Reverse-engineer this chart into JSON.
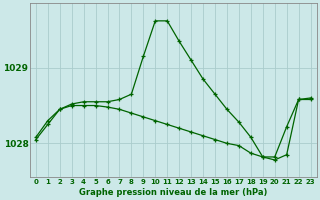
{
  "title": "Graphe pression niveau de la mer (hPa)",
  "bg_color": "#cce8e8",
  "grid_color": "#aacccc",
  "line_color": "#006400",
  "spine_color": "#888888",
  "xlim": [
    -0.5,
    23.5
  ],
  "ylim": [
    1027.55,
    1029.85
  ],
  "yticks": [
    1028,
    1029
  ],
  "xticks": [
    0,
    1,
    2,
    3,
    4,
    5,
    6,
    7,
    8,
    9,
    10,
    11,
    12,
    13,
    14,
    15,
    16,
    17,
    18,
    19,
    20,
    21,
    22,
    23
  ],
  "series1_x": [
    0,
    1,
    2,
    3,
    4,
    5,
    6,
    7,
    8,
    9,
    10,
    11,
    12,
    13,
    14,
    15,
    16,
    17,
    18,
    19,
    20,
    21,
    22,
    23
  ],
  "series1_y": [
    1028.05,
    1028.25,
    1028.45,
    1028.52,
    1028.55,
    1028.55,
    1028.55,
    1028.58,
    1028.65,
    1029.15,
    1029.62,
    1029.62,
    1029.35,
    1029.1,
    1028.85,
    1028.65,
    1028.45,
    1028.28,
    1028.08,
    1027.82,
    1027.82,
    1028.22,
    1028.58,
    1028.58
  ],
  "series2_x": [
    0,
    1,
    2,
    3,
    4,
    5,
    6,
    7,
    8,
    9,
    10,
    11,
    12,
    13,
    14,
    15,
    16,
    17,
    18,
    19,
    20,
    21,
    22,
    23
  ],
  "series2_y": [
    1028.08,
    1028.3,
    1028.45,
    1028.5,
    1028.5,
    1028.5,
    1028.48,
    1028.45,
    1028.4,
    1028.35,
    1028.3,
    1028.25,
    1028.2,
    1028.15,
    1028.1,
    1028.05,
    1028.0,
    1027.97,
    1027.87,
    1027.82,
    1027.78,
    1027.85,
    1028.58,
    1028.6
  ],
  "xlabel_fontsize": 6.0,
  "ytick_fontsize": 6.5,
  "xtick_fontsize": 5.0
}
